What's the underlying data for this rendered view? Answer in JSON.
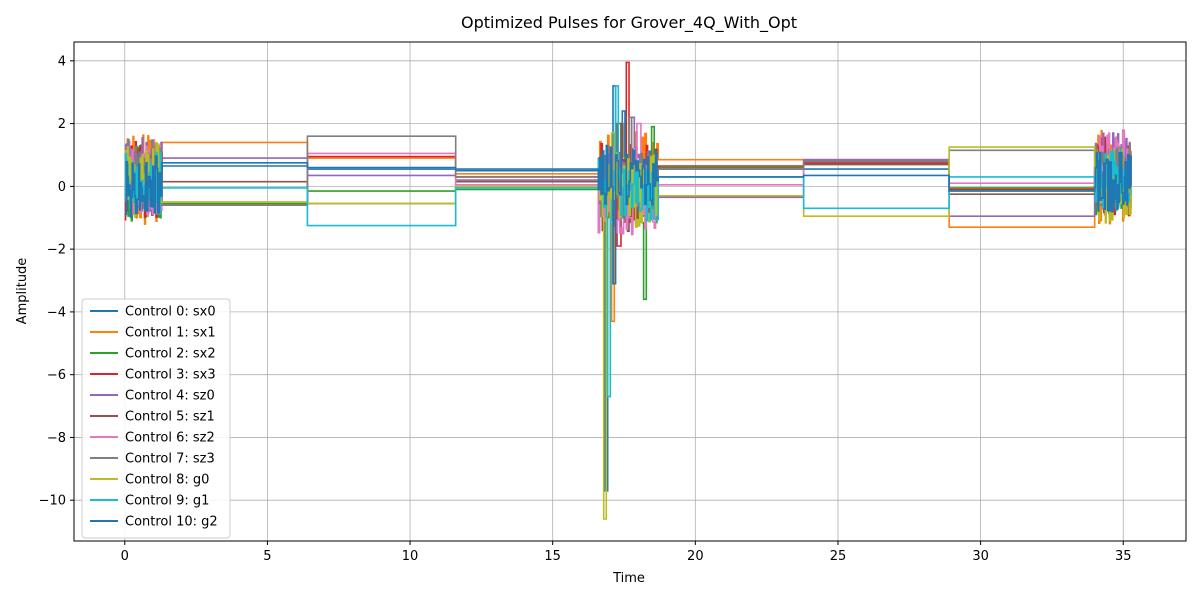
{
  "chart_data": {
    "type": "line",
    "title": "Optimized Pulses for Grover_4Q_With_Opt",
    "xlabel": "Time",
    "ylabel": "Amplitude",
    "xlim": [
      -1.78,
      37.2
    ],
    "ylim": [
      -11.3,
      4.6
    ],
    "xticks": [
      0,
      5,
      10,
      15,
      20,
      25,
      30,
      35
    ],
    "yticks": [
      4,
      2,
      0,
      -2,
      -4,
      -6,
      -8,
      -10
    ],
    "grid": true,
    "legend_position": "lower-left",
    "segment_boundaries": [
      0,
      1.3,
      6.4,
      11.6,
      16.6,
      18.7,
      23.8,
      28.9,
      34.0,
      35.3
    ],
    "series": [
      {
        "name": "Control 0: sx0",
        "color": "#1f77b4",
        "levels": [
          0.3,
          0.65,
          0.55,
          0.5,
          0.3,
          0.55,
          0.55,
          -0.1,
          0.2
        ],
        "spike": [
          -9.7,
          3.2
        ],
        "noise": 1.0
      },
      {
        "name": "Control 1: sx1",
        "color": "#ff7f0e",
        "levels": [
          0.2,
          1.4,
          0.9,
          0.4,
          0.25,
          0.85,
          0.85,
          -1.3,
          0.3
        ],
        "spike": [
          -4.3,
          2.0
        ],
        "noise": 1.5
      },
      {
        "name": "Control 2: sx2",
        "color": "#2ca02c",
        "levels": [
          0.1,
          -0.55,
          -0.15,
          -0.1,
          0.0,
          0.6,
          0.7,
          -0.05,
          0.2
        ],
        "spike": [
          -3.6,
          1.9
        ],
        "noise": 1.2
      },
      {
        "name": "Control 3: sx3",
        "color": "#d62728",
        "levels": [
          0.2,
          -0.6,
          0.95,
          0.3,
          0.2,
          0.65,
          0.75,
          -0.1,
          0.3
        ],
        "spike": [
          -1.9,
          3.95
        ],
        "noise": 1.3
      },
      {
        "name": "Control 4: sz0",
        "color": "#9467bd",
        "levels": [
          0.4,
          0.9,
          0.35,
          0.2,
          0.1,
          -0.35,
          0.85,
          -0.95,
          0.5
        ],
        "spike": [
          -1.0,
          2.2
        ],
        "noise": 1.2
      },
      {
        "name": "Control 5: sz1",
        "color": "#8c564b",
        "levels": [
          0.1,
          0.15,
          -0.55,
          0.15,
          -0.45,
          -0.3,
          0.7,
          -0.25,
          0.1
        ],
        "spike": [
          -1.0,
          2.0
        ],
        "noise": 1.0
      },
      {
        "name": "Control 6: sz2",
        "color": "#e377c2",
        "levels": [
          0.3,
          -0.5,
          1.05,
          0.05,
          -0.45,
          0.05,
          0.8,
          0.1,
          0.6
        ],
        "spike": [
          -1.0,
          2.0
        ],
        "noise": 1.2
      },
      {
        "name": "Control 7: sz3",
        "color": "#7f7f7f",
        "levels": [
          0.5,
          -0.6,
          1.6,
          0.3,
          0.15,
          0.55,
          0.8,
          1.15,
          0.4
        ],
        "spike": [
          -1.0,
          2.2
        ],
        "noise": 1.0
      },
      {
        "name": "Control 8: g0",
        "color": "#bcbd22",
        "levels": [
          0.2,
          -0.5,
          -0.55,
          0.0,
          -0.1,
          -0.3,
          -0.95,
          1.25,
          0.0
        ],
        "spike": [
          -10.6,
          1.7
        ],
        "noise": 1.2
      },
      {
        "name": "Control 9: g1",
        "color": "#17becf",
        "levels": [
          0.1,
          -0.05,
          -1.25,
          -0.05,
          -0.1,
          0.3,
          -0.7,
          0.3,
          0.2
        ],
        "spike": [
          -6.7,
          3.2
        ],
        "noise": 1.0
      },
      {
        "name": "Control 10: g2",
        "color": "#1f77b4",
        "levels": [
          0.0,
          0.75,
          0.6,
          0.55,
          0.35,
          0.3,
          0.35,
          -0.15,
          0.1
        ],
        "spike": [
          -3.1,
          2.4
        ],
        "noise": 1.0
      }
    ]
  }
}
